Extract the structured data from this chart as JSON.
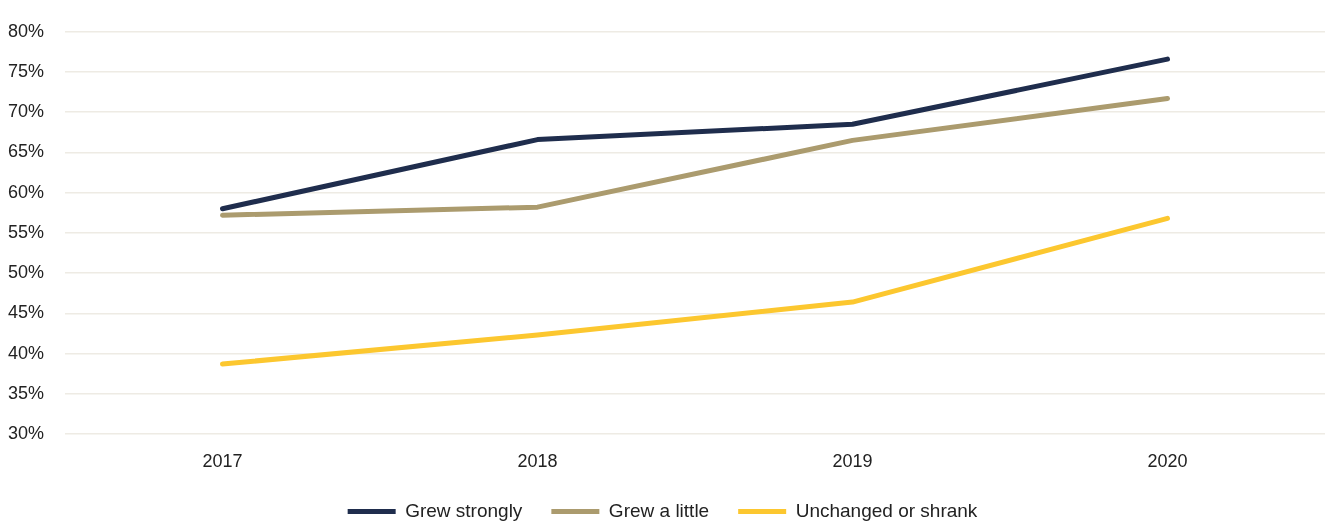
{
  "chart_data": {
    "type": "line",
    "categories": [
      "2017",
      "2018",
      "2019",
      "2020"
    ],
    "series": [
      {
        "name": "Grew strongly",
        "color": "#1f2d4d",
        "values": [
          58.0,
          66.6,
          68.5,
          76.6
        ]
      },
      {
        "name": "Grew a little",
        "color": "#ab9b6e",
        "values": [
          57.2,
          58.2,
          66.5,
          71.7
        ]
      },
      {
        "name": "Unchanged or shrank",
        "color": "#fcc72f",
        "values": [
          38.7,
          42.3,
          46.4,
          56.8
        ]
      }
    ],
    "ylim": [
      30,
      80
    ],
    "yticks": [
      {
        "value": 30,
        "label": "30%"
      },
      {
        "value": 35,
        "label": "35%"
      },
      {
        "value": 40,
        "label": "40%"
      },
      {
        "value": 45,
        "label": "45%"
      },
      {
        "value": 50,
        "label": "50%"
      },
      {
        "value": 55,
        "label": "55%"
      },
      {
        "value": 60,
        "label": "60%"
      },
      {
        "value": 65,
        "label": "65%"
      },
      {
        "value": 70,
        "label": "70%"
      },
      {
        "value": 75,
        "label": "75%"
      },
      {
        "value": 80,
        "label": "80%"
      }
    ],
    "grid": "y",
    "legend": "bottom",
    "line_style": "solid"
  }
}
